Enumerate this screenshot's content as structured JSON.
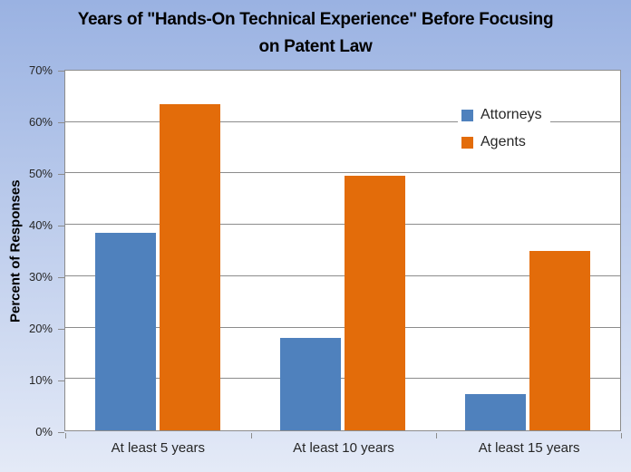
{
  "chart_data": {
    "type": "bar",
    "title": "Years of \"Hands-On Technical Experience\" Before Focusing on Patent Law",
    "ylabel": "Percent of Responses",
    "xlabel": "",
    "categories": [
      "At least 5 years",
      "At least 10 years",
      "At least 15 years"
    ],
    "series": [
      {
        "name": "Attorneys",
        "color": "#4F81BD",
        "values": [
          38.5,
          18,
          7
        ]
      },
      {
        "name": "Agents",
        "color": "#E36C0A",
        "values": [
          63.5,
          49.5,
          35
        ]
      }
    ],
    "y_axis": {
      "min": 0,
      "max": 70,
      "step": 10,
      "tick_suffix": "%"
    },
    "grid": true,
    "legend_position": "inside-top-right"
  },
  "colors": {
    "background_top": "#9AB2E2",
    "background_bottom": "#E4EAF7",
    "plot_background": "#FFFFFF",
    "gridline": "#8C8C8C",
    "series_attorneys": "#4F81BD",
    "series_agents": "#E36C0A",
    "text": "#262626",
    "title_text": "#000000"
  }
}
